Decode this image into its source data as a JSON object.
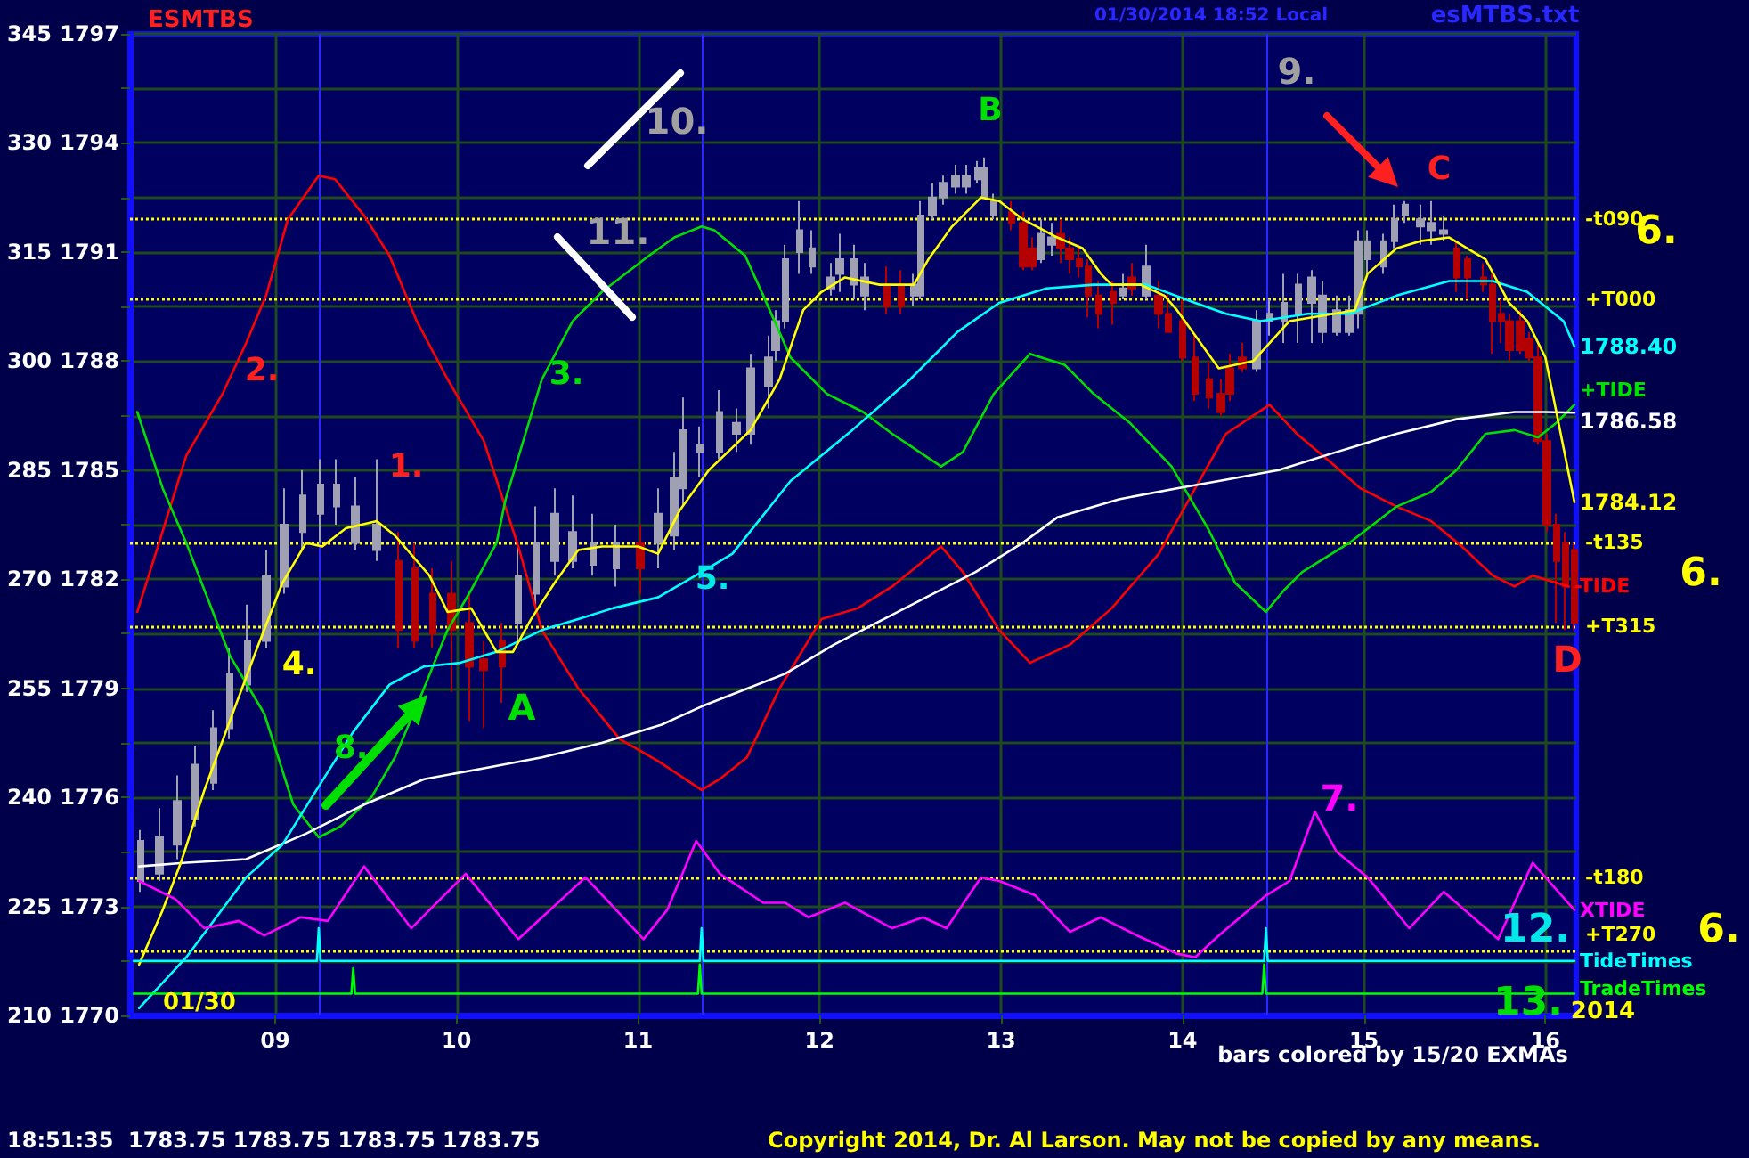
{
  "chart_data": {
    "type": "candlestick",
    "title": "ESMTBS",
    "xlim": [
      8.2,
      16.17
    ],
    "xticks": [
      {
        "value": 9,
        "label": "09"
      },
      {
        "value": 10,
        "label": "10"
      },
      {
        "value": 11,
        "label": "11"
      },
      {
        "value": 12,
        "label": "12"
      },
      {
        "value": 13,
        "label": "13"
      },
      {
        "value": 14,
        "label": "14"
      },
      {
        "value": 15,
        "label": "15"
      },
      {
        "value": 16,
        "label": "16"
      }
    ],
    "ylim": [
      1770,
      1797
    ],
    "yticks": [
      1770,
      {
        "value": 1771.5,
        "label": null
      },
      1773,
      {
        "value": 1774.5,
        "label": null
      },
      1776,
      {
        "value": 1777.5,
        "label": null
      },
      1779,
      {
        "value": 1780.5,
        "label": null
      },
      1782,
      {
        "value": 1783.5,
        "label": null
      },
      1785,
      {
        "value": 1786.5,
        "label": null
      },
      1788,
      {
        "value": 1789.5,
        "label": null
      },
      1791,
      {
        "value": 1792.5,
        "label": null
      },
      1794,
      {
        "value": 1795.5,
        "label": null
      },
      1797
    ],
    "y2lim": [
      210,
      345
    ],
    "y2ticks": [
      210,
      225,
      240,
      255,
      270,
      285,
      300,
      315,
      330,
      345
    ],
    "grid": true,
    "marker": "none",
    "line_style": "solid",
    "x": [
      8.26,
      8.36,
      8.46,
      8.56,
      8.66,
      8.75,
      8.85,
      8.95,
      9.05,
      9.15,
      9.25,
      9.34,
      9.44,
      9.56,
      9.68,
      9.77,
      9.87,
      9.97,
      10.07,
      10.15,
      10.25,
      10.34,
      10.44,
      10.54,
      10.64,
      10.75,
      10.88,
      11.01,
      11.11,
      11.2,
      11.25,
      11.34,
      11.45,
      11.54,
      11.62,
      11.72,
      11.76,
      11.81,
      11.89,
      11.96,
      12.06,
      12.11,
      12.19,
      12.25,
      12.37,
      12.45,
      12.52,
      12.56,
      12.62,
      12.68,
      12.75,
      12.81,
      12.87,
      12.91,
      12.96,
      13.06,
      13.12,
      13.17,
      13.22,
      13.28,
      13.33,
      13.38,
      13.43,
      13.48,
      13.54,
      13.62,
      13.67,
      13.72,
      13.8,
      13.87,
      13.92,
      14.0,
      14.07,
      14.15,
      14.21,
      14.26,
      14.33,
      14.41,
      14.48,
      14.56,
      14.64,
      14.71,
      14.77,
      14.85,
      14.92,
      14.97,
      15.02,
      15.11,
      15.17,
      15.23,
      15.31,
      15.37,
      15.44,
      15.51,
      15.57,
      15.66,
      15.71,
      15.76,
      15.8,
      15.86,
      15.91,
      15.96,
      16.01,
      16.06,
      16.11,
      16.16
    ],
    "ohlc": [
      [
        1773.7,
        1775.1,
        1773.4,
        1774.8
      ],
      [
        1773.9,
        1775.7,
        1773.7,
        1774.9
      ],
      [
        1774.7,
        1776.6,
        1774.3,
        1775.9
      ],
      [
        1775.4,
        1777.4,
        1775.2,
        1776.9
      ],
      [
        1776.4,
        1778.4,
        1776.2,
        1777.9
      ],
      [
        1777.9,
        1780.1,
        1777.6,
        1779.4
      ],
      [
        1779.1,
        1781.3,
        1778.9,
        1780.3
      ],
      [
        1780.3,
        1782.8,
        1780.1,
        1782.1
      ],
      [
        1781.8,
        1784.5,
        1781.6,
        1783.5
      ],
      [
        1783.3,
        1785.0,
        1782.8,
        1784.3
      ],
      [
        1783.8,
        1785.3,
        1783.0,
        1784.6
      ],
      [
        1784.0,
        1785.3,
        1783.5,
        1784.6
      ],
      [
        1783.0,
        1784.8,
        1782.8,
        1784.0
      ],
      [
        1782.8,
        1785.3,
        1782.5,
        1783.5
      ],
      [
        1782.5,
        1783.3,
        1780.1,
        1780.6
      ],
      [
        1782.3,
        1783.0,
        1780.1,
        1780.3
      ],
      [
        1781.6,
        1782.3,
        1780.1,
        1780.5
      ],
      [
        1781.6,
        1782.5,
        1778.9,
        1780.6
      ],
      [
        1780.8,
        1781.6,
        1778.1,
        1779.6
      ],
      [
        1779.8,
        1780.3,
        1777.9,
        1779.5
      ],
      [
        1780.3,
        1780.8,
        1778.6,
        1779.6
      ],
      [
        1780.8,
        1783.0,
        1780.3,
        1782.1
      ],
      [
        1781.6,
        1784.0,
        1781.3,
        1783.0
      ],
      [
        1782.5,
        1784.5,
        1782.1,
        1783.8
      ],
      [
        1782.5,
        1784.3,
        1782.3,
        1783.3
      ],
      [
        1782.4,
        1783.8,
        1782.1,
        1783.0
      ],
      [
        1782.3,
        1783.5,
        1781.8,
        1783.0
      ],
      [
        1783.0,
        1783.5,
        1781.6,
        1782.3
      ],
      [
        1783.0,
        1784.5,
        1782.3,
        1783.8
      ],
      [
        1783.2,
        1785.5,
        1782.8,
        1784.8
      ],
      [
        1784.5,
        1787.0,
        1784.0,
        1786.1
      ],
      [
        1785.5,
        1786.2,
        1784.8,
        1785.7
      ],
      [
        1785.5,
        1787.2,
        1785.3,
        1786.6
      ],
      [
        1786.0,
        1786.7,
        1785.5,
        1786.3
      ],
      [
        1786.0,
        1788.2,
        1785.7,
        1787.8
      ],
      [
        1787.3,
        1788.7,
        1786.7,
        1788.1
      ],
      [
        1788.3,
        1789.4,
        1788.0,
        1789.1
      ],
      [
        1789.1,
        1791.2,
        1788.9,
        1790.8
      ],
      [
        1791.0,
        1792.4,
        1790.4,
        1791.6
      ],
      [
        1790.6,
        1791.6,
        1790.4,
        1791.1
      ],
      [
        1790.0,
        1790.7,
        1789.8,
        1790.3
      ],
      [
        1790.4,
        1791.5,
        1789.9,
        1790.8
      ],
      [
        1790.1,
        1791.2,
        1789.7,
        1790.8
      ],
      [
        1789.8,
        1790.7,
        1789.4,
        1790.3
      ],
      [
        1790.1,
        1790.6,
        1789.3,
        1789.5
      ],
      [
        1790.1,
        1790.5,
        1789.3,
        1789.5
      ],
      [
        1789.8,
        1790.4,
        1789.5,
        1790.1
      ],
      [
        1789.8,
        1792.4,
        1789.7,
        1792.0
      ],
      [
        1792.0,
        1792.9,
        1791.9,
        1792.5
      ],
      [
        1792.5,
        1793.1,
        1792.3,
        1792.9
      ],
      [
        1792.8,
        1793.4,
        1792.6,
        1793.1
      ],
      [
        1792.8,
        1793.4,
        1792.6,
        1793.1
      ],
      [
        1793.0,
        1793.5,
        1792.9,
        1793.3
      ],
      [
        1792.5,
        1793.6,
        1792.5,
        1793.3
      ],
      [
        1792.0,
        1792.6,
        1791.9,
        1792.4
      ],
      [
        1792.1,
        1792.4,
        1791.6,
        1791.8
      ],
      [
        1791.8,
        1792.1,
        1790.5,
        1790.6
      ],
      [
        1791.1,
        1791.4,
        1790.5,
        1790.6
      ],
      [
        1790.8,
        1791.9,
        1790.7,
        1791.5
      ],
      [
        1791.2,
        1791.8,
        1790.9,
        1791.4
      ],
      [
        1791.5,
        1791.9,
        1790.7,
        1791.1
      ],
      [
        1791.1,
        1791.4,
        1790.4,
        1790.8
      ],
      [
        1790.8,
        1791.2,
        1790.3,
        1790.6
      ],
      [
        1790.6,
        1790.8,
        1789.2,
        1789.8
      ],
      [
        1789.8,
        1790.2,
        1788.9,
        1789.3
      ],
      [
        1789.9,
        1790.2,
        1789.0,
        1789.6
      ],
      [
        1789.8,
        1790.4,
        1789.7,
        1790.0
      ],
      [
        1790.3,
        1790.7,
        1789.8,
        1790.0
      ],
      [
        1789.8,
        1791.2,
        1789.7,
        1790.6
      ],
      [
        1789.8,
        1790.2,
        1788.9,
        1789.3
      ],
      [
        1789.3,
        1789.9,
        1788.8,
        1788.8
      ],
      [
        1789.1,
        1789.7,
        1788.0,
        1788.1
      ],
      [
        1788.1,
        1788.7,
        1786.9,
        1787.1
      ],
      [
        1787.5,
        1788.0,
        1786.7,
        1787.0
      ],
      [
        1787.1,
        1787.5,
        1786.5,
        1786.6
      ],
      [
        1787.8,
        1788.2,
        1786.9,
        1787.1
      ],
      [
        1788.1,
        1788.5,
        1787.7,
        1787.8
      ],
      [
        1787.8,
        1789.4,
        1787.7,
        1789.1
      ],
      [
        1789.1,
        1789.7,
        1788.7,
        1789.3
      ],
      [
        1789.1,
        1790.4,
        1788.5,
        1789.6
      ],
      [
        1789.3,
        1790.4,
        1788.5,
        1790.1
      ],
      [
        1789.6,
        1790.5,
        1788.5,
        1790.3
      ],
      [
        1788.8,
        1790.2,
        1788.5,
        1789.8
      ],
      [
        1788.8,
        1789.8,
        1788.7,
        1789.4
      ],
      [
        1788.8,
        1789.8,
        1788.7,
        1789.4
      ],
      [
        1789.3,
        1791.6,
        1788.9,
        1791.3
      ],
      [
        1790.8,
        1791.6,
        1790.4,
        1791.3
      ],
      [
        1790.6,
        1791.5,
        1790.4,
        1791.3
      ],
      [
        1791.3,
        1792.3,
        1791.1,
        1791.9
      ],
      [
        1792.0,
        1792.4,
        1791.8,
        1792.3
      ],
      [
        1791.7,
        1792.3,
        1791.2,
        1791.9
      ],
      [
        1791.6,
        1792.4,
        1791.2,
        1791.8
      ],
      [
        1791.5,
        1792.0,
        1791.3,
        1791.6
      ],
      [
        1791.1,
        1791.3,
        1789.9,
        1790.3
      ],
      [
        1790.8,
        1790.9,
        1789.7,
        1790.3
      ],
      [
        1790.3,
        1790.7,
        1789.9,
        1790.1
      ],
      [
        1790.1,
        1790.4,
        1788.2,
        1789.1
      ],
      [
        1789.3,
        1789.7,
        1788.5,
        1789.1
      ],
      [
        1789.1,
        1789.3,
        1788.0,
        1788.3
      ],
      [
        1789.1,
        1789.4,
        1788.2,
        1788.3
      ],
      [
        1788.6,
        1788.8,
        1788.0,
        1788.1
      ],
      [
        1788.1,
        1788.5,
        1785.7,
        1785.8
      ],
      [
        1785.8,
        1786.0,
        1783.3,
        1783.5
      ],
      [
        1783.5,
        1783.8,
        1780.8,
        1782.5
      ],
      [
        1783.0,
        1783.3,
        1780.6,
        1781.8
      ],
      [
        1782.8,
        1783.0,
        1780.6,
        1780.8
      ]
    ],
    "colors": [
      "#a0a0b4",
      "#a0a0b4",
      "#a0a0b4",
      "#a0a0b4",
      "#a0a0b4",
      "#a0a0b4",
      "#a0a0b4",
      "#a0a0b4",
      "#a0a0b4",
      "#a0a0b4",
      "#a0a0b4",
      "#a0a0b4",
      "#a0a0b4",
      "#a0a0b4",
      "#b40000",
      "#b40000",
      "#b40000",
      "#b40000",
      "#b40000",
      "#b40000",
      "#b40000",
      "#a0a0b4",
      "#a0a0b4",
      "#a0a0b4",
      "#a0a0b4",
      "#a0a0b4",
      "#a0a0b4",
      "#b40000",
      "#a0a0b4",
      "#a0a0b4",
      "#a0a0b4",
      "#a0a0b4",
      "#a0a0b4",
      "#a0a0b4",
      "#a0a0b4",
      "#a0a0b4",
      "#a0a0b4",
      "#a0a0b4",
      "#a0a0b4",
      "#a0a0b4",
      "#a0a0b4",
      "#a0a0b4",
      "#a0a0b4",
      "#a0a0b4",
      "#b40000",
      "#b40000",
      "#a0a0b4",
      "#a0a0b4",
      "#a0a0b4",
      "#a0a0b4",
      "#a0a0b4",
      "#a0a0b4",
      "#a0a0b4",
      "#a0a0b4",
      "#a0a0b4",
      "#b40000",
      "#b40000",
      "#b40000",
      "#a0a0b4",
      "#a0a0b4",
      "#b40000",
      "#b40000",
      "#b40000",
      "#b40000",
      "#b40000",
      "#b40000",
      "#a0a0b4",
      "#b40000",
      "#a0a0b4",
      "#b40000",
      "#b40000",
      "#b40000",
      "#b40000",
      "#b40000",
      "#b40000",
      "#b40000",
      "#b40000",
      "#a0a0b4",
      "#a0a0b4",
      "#a0a0b4",
      "#a0a0b4",
      "#a0a0b4",
      "#a0a0b4",
      "#a0a0b4",
      "#a0a0b4",
      "#a0a0b4",
      "#a0a0b4",
      "#a0a0b4",
      "#a0a0b4",
      "#a0a0b4",
      "#a0a0b4",
      "#a0a0b4",
      "#a0a0b4",
      "#b40000",
      "#b40000",
      "#b40000",
      "#b40000",
      "#b40000",
      "#b40000",
      "#b40000",
      "#b40000",
      "#b40000",
      "#b40000",
      "#b40000",
      "#b40000",
      "#b40000"
    ],
    "series": [
      {
        "type": "line",
        "name": "-TIDE",
        "color": "#ff0000",
        "x": [
          8.24,
          8.36,
          8.51,
          8.71,
          8.84,
          8.95,
          9.07,
          9.24,
          9.33,
          9.49,
          9.63,
          9.78,
          9.95,
          10.15,
          10.34,
          10.47,
          10.67,
          10.9,
          11.11,
          11.35,
          11.45,
          11.6,
          11.78,
          12.01,
          12.21,
          12.4,
          12.67,
          12.79,
          12.99,
          13.16,
          13.38,
          13.61,
          13.87,
          14.07,
          14.24,
          14.48,
          14.63,
          14.82,
          14.98,
          15.18,
          15.37,
          15.54,
          15.71,
          15.83,
          15.93,
          16.13
        ],
        "values": [
          1781.1,
          1783.0,
          1785.4,
          1787.1,
          1788.5,
          1789.8,
          1791.9,
          1793.1,
          1793.0,
          1792.0,
          1790.9,
          1789.1,
          1787.5,
          1785.8,
          1782.9,
          1780.6,
          1779.0,
          1777.6,
          1777.0,
          1776.2,
          1776.5,
          1777.1,
          1779.0,
          1780.9,
          1781.2,
          1781.8,
          1782.9,
          1782.2,
          1780.6,
          1779.7,
          1780.2,
          1781.2,
          1782.7,
          1784.5,
          1786.0,
          1786.8,
          1786.0,
          1785.2,
          1784.5,
          1784.0,
          1783.6,
          1782.9,
          1782.1,
          1781.8,
          1782.1,
          1781.8
        ]
      },
      {
        "type": "line",
        "name": "+TIDE",
        "color": "#00e000",
        "x": [
          8.24,
          8.38,
          8.51,
          8.61,
          8.75,
          8.94,
          9.1,
          9.24,
          9.36,
          9.53,
          9.66,
          9.82,
          9.95,
          10.08,
          10.22,
          10.27,
          10.47,
          10.64,
          10.8,
          11.06,
          11.2,
          11.35,
          11.42,
          11.59,
          11.69,
          11.84,
          12.04,
          12.24,
          12.4,
          12.67,
          12.79,
          12.96,
          13.16,
          13.35,
          13.51,
          13.71,
          13.94,
          14.14,
          14.29,
          14.46,
          14.56,
          14.66,
          14.92,
          15.18,
          15.37,
          15.51,
          15.67,
          15.83,
          15.96,
          16.06,
          16.16
        ],
        "values": [
          1786.6,
          1784.5,
          1783.0,
          1781.7,
          1779.9,
          1778.3,
          1775.8,
          1774.9,
          1775.2,
          1776.0,
          1777.1,
          1779.0,
          1780.6,
          1781.7,
          1783.0,
          1784.2,
          1787.5,
          1789.1,
          1789.9,
          1790.9,
          1791.4,
          1791.7,
          1791.6,
          1790.9,
          1789.8,
          1788.1,
          1787.1,
          1786.6,
          1786.0,
          1785.1,
          1785.5,
          1787.1,
          1788.2,
          1787.9,
          1787.1,
          1786.3,
          1785.1,
          1783.4,
          1781.9,
          1781.1,
          1781.7,
          1782.2,
          1783.0,
          1784.0,
          1784.4,
          1785.0,
          1786.0,
          1786.1,
          1785.9,
          1786.3,
          1786.8
        ]
      },
      {
        "type": "line",
        "color": "#ffffff",
        "x": [
          8.25,
          8.51,
          8.84,
          9.17,
          9.49,
          9.82,
          10.15,
          10.47,
          10.8,
          11.13,
          11.35,
          11.81,
          12.08,
          12.47,
          12.86,
          13.12,
          13.31,
          13.65,
          13.97,
          14.2,
          14.53,
          14.85,
          15.18,
          15.51,
          15.83,
          16.0,
          16.16
        ],
        "values": [
          1774.1,
          1774.2,
          1774.3,
          1775.0,
          1775.8,
          1776.5,
          1776.8,
          1777.1,
          1777.5,
          1778.0,
          1778.5,
          1779.4,
          1780.2,
          1781.2,
          1782.2,
          1783.0,
          1783.7,
          1784.2,
          1784.5,
          1784.7,
          1785.0,
          1785.5,
          1786.0,
          1786.4,
          1786.6,
          1786.6,
          1786.58
        ],
        "value_labels": [
          null,
          null,
          null,
          null,
          null,
          null,
          null,
          null,
          null,
          null,
          null,
          null,
          null,
          null,
          null,
          null,
          null,
          null,
          null,
          null,
          null,
          null,
          null,
          null,
          null,
          null,
          "1786.58"
        ]
      },
      {
        "type": "line",
        "color": "#00ffff",
        "x": [
          8.25,
          8.51,
          8.84,
          9.04,
          9.24,
          9.43,
          9.63,
          9.82,
          10.02,
          10.22,
          10.47,
          10.67,
          10.86,
          11.11,
          11.35,
          11.52,
          11.84,
          12.18,
          12.5,
          12.76,
          12.99,
          13.25,
          13.51,
          13.8,
          14.07,
          14.24,
          14.43,
          14.69,
          14.92,
          15.18,
          15.47,
          15.71,
          15.9,
          16.1,
          16.16
        ],
        "values": [
          1770.2,
          1771.6,
          1773.8,
          1774.7,
          1776.3,
          1777.8,
          1779.1,
          1779.6,
          1779.7,
          1780.0,
          1780.6,
          1780.9,
          1781.2,
          1781.5,
          1782.2,
          1782.7,
          1784.7,
          1786.1,
          1787.5,
          1788.8,
          1789.6,
          1790.0,
          1790.1,
          1790.1,
          1789.6,
          1789.3,
          1789.1,
          1789.3,
          1789.3,
          1789.8,
          1790.2,
          1790.2,
          1789.9,
          1789.1,
          1788.4
        ],
        "value_labels": [
          null,
          null,
          null,
          null,
          null,
          null,
          null,
          null,
          null,
          null,
          null,
          null,
          null,
          null,
          null,
          null,
          null,
          null,
          null,
          null,
          null,
          null,
          null,
          null,
          null,
          null,
          null,
          null,
          null,
          null,
          null,
          null,
          null,
          null,
          "1788.40"
        ]
      },
      {
        "type": "line",
        "color": "#ffff00",
        "x": [
          8.25,
          8.38,
          8.48,
          8.61,
          8.75,
          8.9,
          9.04,
          9.17,
          9.26,
          9.39,
          9.56,
          9.66,
          9.85,
          9.95,
          10.08,
          10.22,
          10.31,
          10.41,
          10.54,
          10.67,
          10.8,
          11.0,
          11.11,
          11.23,
          11.39,
          11.62,
          11.78,
          11.91,
          12.01,
          12.14,
          12.33,
          12.52,
          12.6,
          12.73,
          12.89,
          12.99,
          13.12,
          13.31,
          13.45,
          13.55,
          13.61,
          13.77,
          13.9,
          13.97,
          14.2,
          14.39,
          14.59,
          14.95,
          15.02,
          15.18,
          15.31,
          15.47,
          15.67,
          15.8,
          15.9,
          16.0,
          16.16
        ],
        "values": [
          1771.4,
          1772.9,
          1774.2,
          1776.2,
          1778.1,
          1780.1,
          1781.9,
          1783.0,
          1782.9,
          1783.4,
          1783.6,
          1783.2,
          1782.1,
          1781.1,
          1781.2,
          1780.0,
          1780.0,
          1780.9,
          1781.9,
          1782.8,
          1782.9,
          1782.9,
          1782.7,
          1783.9,
          1785.0,
          1786.1,
          1787.5,
          1789.4,
          1789.9,
          1790.3,
          1790.1,
          1790.1,
          1790.8,
          1791.7,
          1792.5,
          1792.4,
          1791.9,
          1791.4,
          1791.1,
          1790.4,
          1790.1,
          1790.1,
          1789.8,
          1789.4,
          1787.8,
          1788.0,
          1789.1,
          1789.4,
          1790.4,
          1791.1,
          1791.3,
          1791.4,
          1790.8,
          1789.6,
          1789.1,
          1788.1,
          1784.12
        ],
        "value_labels": [
          null,
          null,
          null,
          null,
          null,
          null,
          null,
          null,
          null,
          null,
          null,
          null,
          null,
          null,
          null,
          null,
          null,
          null,
          null,
          null,
          null,
          null,
          null,
          null,
          null,
          null,
          null,
          null,
          null,
          null,
          null,
          null,
          null,
          null,
          null,
          null,
          null,
          null,
          null,
          null,
          null,
          null,
          null,
          null,
          null,
          null,
          null,
          null,
          null,
          null,
          null,
          null,
          null,
          null,
          null,
          null,
          "1784.12"
        ]
      },
      {
        "type": "line",
        "name": "XTIDE",
        "color": "#ff00ff",
        "x": [
          8.25,
          8.45,
          8.61,
          8.8,
          8.94,
          9.14,
          9.29,
          9.49,
          9.75,
          10.05,
          10.34,
          10.71,
          11.03,
          11.16,
          11.32,
          11.45,
          11.69,
          11.81,
          11.94,
          12.14,
          12.4,
          12.57,
          12.7,
          12.89,
          12.99,
          13.19,
          13.38,
          13.55,
          13.75,
          13.97,
          14.07,
          14.2,
          14.46,
          14.59,
          14.73,
          14.85,
          15.02,
          15.25,
          15.44,
          15.74,
          15.93,
          16.16
        ],
        "values": [
          1773.7,
          1773.2,
          1772.4,
          1772.6,
          1772.2,
          1772.7,
          1772.6,
          1774.1,
          1772.4,
          1773.9,
          1772.1,
          1773.8,
          1772.1,
          1772.9,
          1774.8,
          1773.9,
          1773.1,
          1773.1,
          1772.7,
          1773.1,
          1772.4,
          1772.7,
          1772.4,
          1773.8,
          1773.7,
          1773.3,
          1772.3,
          1772.7,
          1772.2,
          1771.7,
          1771.6,
          1772.2,
          1773.3,
          1773.7,
          1775.6,
          1774.5,
          1773.8,
          1772.4,
          1773.4,
          1772.1,
          1774.2,
          1772.9
        ]
      },
      {
        "type": "line",
        "name": "TideTimes",
        "color": "#00ffff",
        "x": [
          8.22,
          9.23,
          9.24,
          9.25,
          11.34,
          11.35,
          11.36,
          14.45,
          14.46,
          14.47,
          16.16
        ],
        "values": [
          1771.5,
          1771.5,
          1772.4,
          1771.5,
          1771.5,
          1772.4,
          1771.5,
          1771.5,
          1772.4,
          1771.5,
          1771.5
        ]
      },
      {
        "type": "line",
        "name": "TradeTimes",
        "color": "#00ff00",
        "x": [
          8.22,
          9.42,
          9.43,
          9.44,
          11.33,
          11.34,
          11.35,
          14.44,
          14.45,
          14.46,
          16.16
        ],
        "values": [
          1770.6,
          1770.6,
          1771.3,
          1770.6,
          1770.6,
          1771.4,
          1770.6,
          1770.6,
          1771.4,
          1770.6,
          1770.6
        ]
      }
    ],
    "ref_lines": [
      {
        "axis": "y",
        "value": 1791.9,
        "label": "-t090",
        "color": "#ffff00",
        "line_style": "dotted"
      },
      {
        "axis": "y",
        "value": 1789.7,
        "label": "+T000",
        "color": "#ffff00",
        "line_style": "dotted"
      },
      {
        "axis": "y",
        "value": 1783.0,
        "label": "-t135",
        "color": "#ffff00",
        "line_style": "dotted"
      },
      {
        "axis": "y",
        "value": 1780.7,
        "label": "+T315",
        "color": "#ffff00",
        "line_style": "dotted"
      },
      {
        "axis": "y",
        "value": 1773.8,
        "label": "-t180",
        "color": "#ffff00",
        "line_style": "dotted"
      },
      {
        "axis": "y",
        "value": 1771.8,
        "label": "+T270",
        "color": "#ffff00",
        "line_style": "dotted"
      },
      {
        "axis": "x",
        "value": 9.24,
        "color": "#2828ff",
        "line_style": "solid"
      },
      {
        "axis": "x",
        "value": 11.35,
        "color": "#2828ff",
        "line_style": "solid"
      },
      {
        "axis": "x",
        "value": 14.46,
        "color": "#2828ff",
        "line_style": "solid"
      }
    ],
    "annotations": [
      "1.",
      "2.",
      "3.",
      "4.",
      "5.",
      "7.",
      "8.",
      "9.",
      "10.",
      "11.",
      "12.",
      "13.",
      "A",
      "B",
      "C",
      "D",
      "01/30",
      "01/30/2014 18:52 Local",
      "esMTBS.txt",
      "6.",
      "6.",
      "6.",
      "2014",
      "bars colored by 15/20 EXMAs",
      "18:51:35  1783.75 1783.75 1783.75 1783.75",
      "Copyright 2014, Dr. Al Larson. May not be copied by any means."
    ]
  }
}
